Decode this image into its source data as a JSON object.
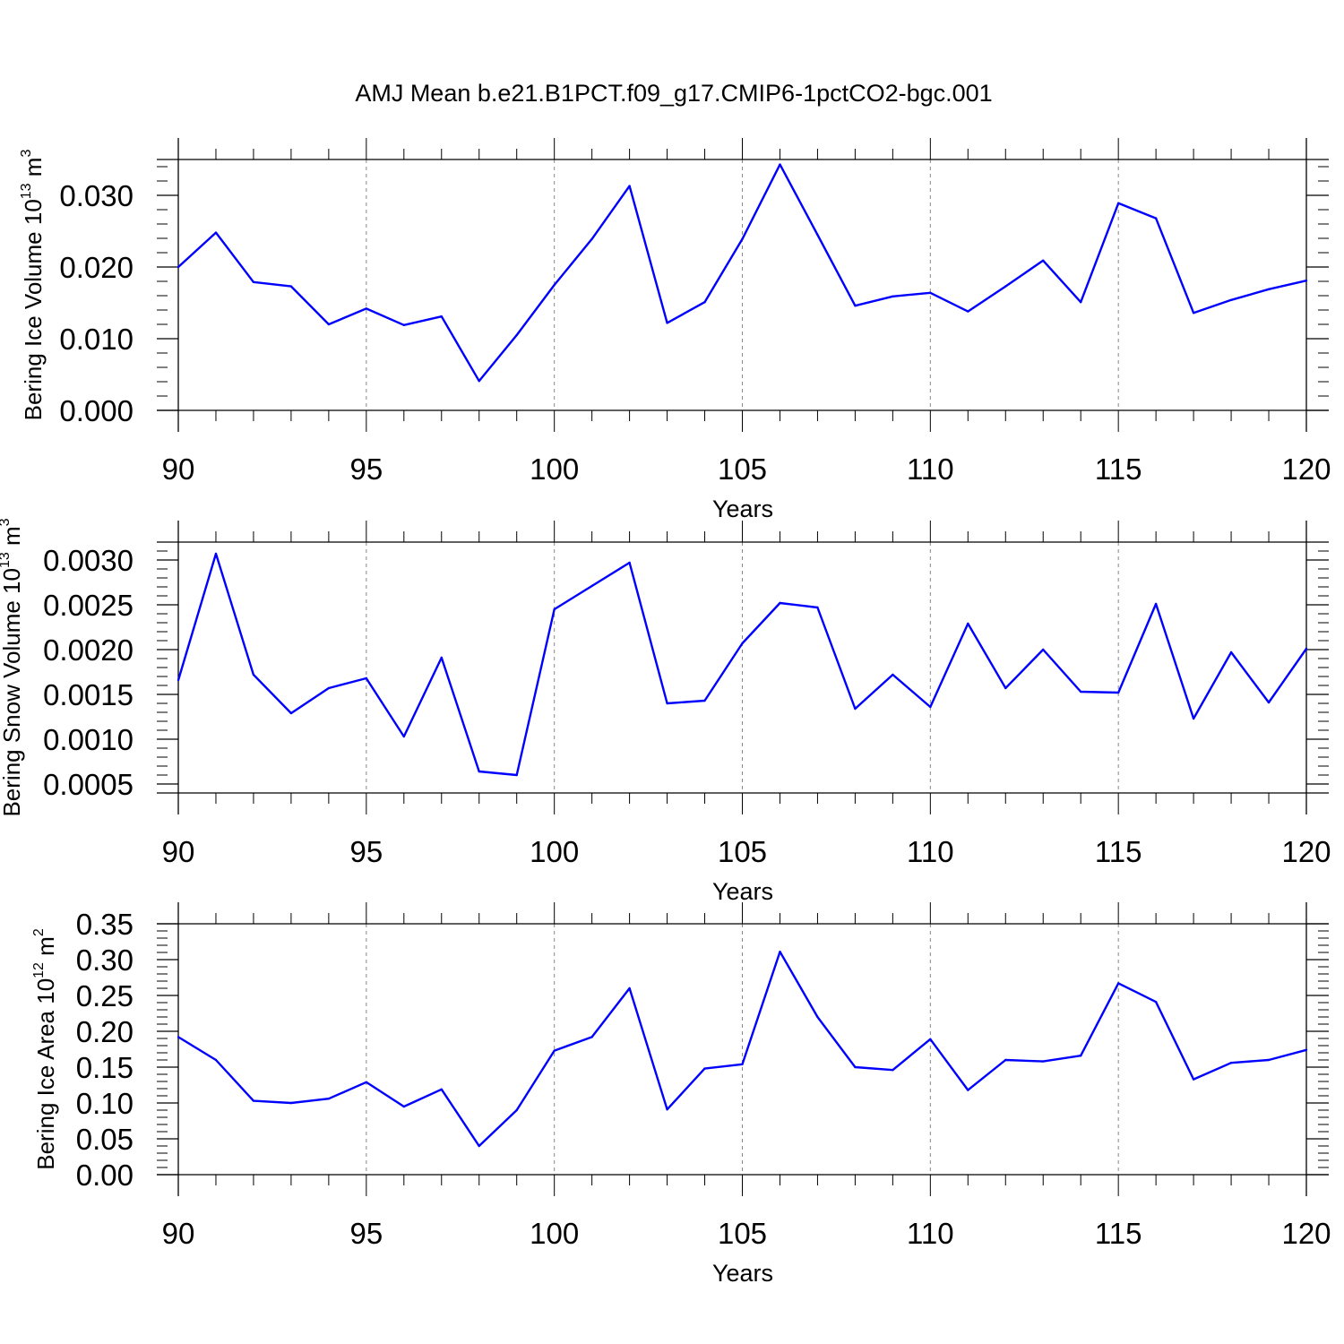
{
  "figure_title": "AMJ Mean b.e21.B1PCT.f09_g17.CMIP6-1pctCO2-bgc.001",
  "chart_data": [
    {
      "type": "line",
      "title": "AMJ Mean b.e21.B1PCT.f09_g17.CMIP6-1pctCO2-bgc.001",
      "xlabel": "Years",
      "ylabel": {
        "text": "Bering Ice Volume 10",
        "exponent": "13",
        "unit": " m",
        "unit_exponent": "3"
      },
      "xlim": [
        90,
        120
      ],
      "ylim": [
        0.0,
        0.035
      ],
      "xticks": [
        90,
        95,
        100,
        105,
        110,
        115,
        120
      ],
      "xtick_labels": [
        "90",
        "95",
        "100",
        "105",
        "110",
        "115",
        "120"
      ],
      "yticks": [
        0.0,
        0.01,
        0.02,
        0.03
      ],
      "ytick_labels": [
        "0.000",
        "0.010",
        "0.020",
        "0.030"
      ],
      "y_minor_step": 0.002,
      "grid": "vertical dashed",
      "line_color": "#0000ff",
      "x": [
        90,
        91,
        92,
        93,
        94,
        95,
        96,
        97,
        98,
        99,
        100,
        101,
        102,
        103,
        104,
        105,
        106,
        107,
        108,
        109,
        110,
        111,
        112,
        113,
        114,
        115,
        116,
        117,
        118,
        119,
        120
      ],
      "y": [
        0.02,
        0.0248,
        0.0179,
        0.0173,
        0.012,
        0.0142,
        0.0119,
        0.0131,
        0.0041,
        0.0105,
        0.0175,
        0.0239,
        0.0313,
        0.0122,
        0.0151,
        0.0239,
        0.0343,
        0.0245,
        0.0146,
        0.0159,
        0.0164,
        0.0138,
        0.0173,
        0.0209,
        0.0151,
        0.0289,
        0.0268,
        0.0136,
        0.0154,
        0.0169,
        0.0181
      ]
    },
    {
      "type": "line",
      "xlabel": "Years",
      "ylabel": {
        "text": "Bering Snow Volume 10",
        "exponent": "13",
        "unit": " m",
        "unit_exponent": "3"
      },
      "xlim": [
        90,
        120
      ],
      "ylim": [
        0.0004,
        0.0032
      ],
      "xticks": [
        90,
        95,
        100,
        105,
        110,
        115,
        120
      ],
      "xtick_labels": [
        "90",
        "95",
        "100",
        "105",
        "110",
        "115",
        "120"
      ],
      "yticks": [
        0.0005,
        0.001,
        0.0015,
        0.002,
        0.0025,
        0.003
      ],
      "ytick_labels": [
        "0.0005",
        "0.0010",
        "0.0015",
        "0.0020",
        "0.0025",
        "0.0030"
      ],
      "y_minor_step": 0.0001,
      "grid": "vertical dashed",
      "line_color": "#0000ff",
      "x": [
        90,
        91,
        92,
        93,
        94,
        95,
        96,
        97,
        98,
        99,
        100,
        101,
        102,
        103,
        104,
        105,
        106,
        107,
        108,
        109,
        110,
        111,
        112,
        113,
        114,
        115,
        116,
        117,
        118,
        119,
        120
      ],
      "y": [
        0.00166,
        0.00307,
        0.00172,
        0.00129,
        0.00157,
        0.00168,
        0.00103,
        0.00191,
        0.00064,
        0.0006,
        0.00245,
        0.00271,
        0.00297,
        0.0014,
        0.00143,
        0.00207,
        0.00252,
        0.00247,
        0.00134,
        0.00172,
        0.00136,
        0.00229,
        0.00157,
        0.002,
        0.00153,
        0.00152,
        0.00251,
        0.00123,
        0.00197,
        0.00141,
        0.00201
      ]
    },
    {
      "type": "line",
      "xlabel": "Years",
      "ylabel": {
        "text": "Bering Ice Area 10",
        "exponent": "12",
        "unit": " m",
        "unit_exponent": "2"
      },
      "xlim": [
        90,
        120
      ],
      "ylim": [
        0.0,
        0.35
      ],
      "xticks": [
        90,
        95,
        100,
        105,
        110,
        115,
        120
      ],
      "xtick_labels": [
        "90",
        "95",
        "100",
        "105",
        "110",
        "115",
        "120"
      ],
      "yticks": [
        0.0,
        0.05,
        0.1,
        0.15,
        0.2,
        0.25,
        0.3,
        0.35
      ],
      "ytick_labels": [
        "0.00",
        "0.05",
        "0.10",
        "0.15",
        "0.20",
        "0.25",
        "0.30",
        "0.35"
      ],
      "y_minor_step": 0.01,
      "grid": "vertical dashed",
      "line_color": "#0000ff",
      "x": [
        90,
        91,
        92,
        93,
        94,
        95,
        96,
        97,
        98,
        99,
        100,
        101,
        102,
        103,
        104,
        105,
        106,
        107,
        108,
        109,
        110,
        111,
        112,
        113,
        114,
        115,
        116,
        117,
        118,
        119,
        120
      ],
      "y": [
        0.192,
        0.16,
        0.103,
        0.1,
        0.106,
        0.129,
        0.095,
        0.119,
        0.04,
        0.09,
        0.173,
        0.192,
        0.26,
        0.091,
        0.148,
        0.154,
        0.311,
        0.22,
        0.15,
        0.146,
        0.189,
        0.118,
        0.16,
        0.158,
        0.166,
        0.267,
        0.241,
        0.133,
        0.156,
        0.16,
        0.174
      ]
    }
  ]
}
